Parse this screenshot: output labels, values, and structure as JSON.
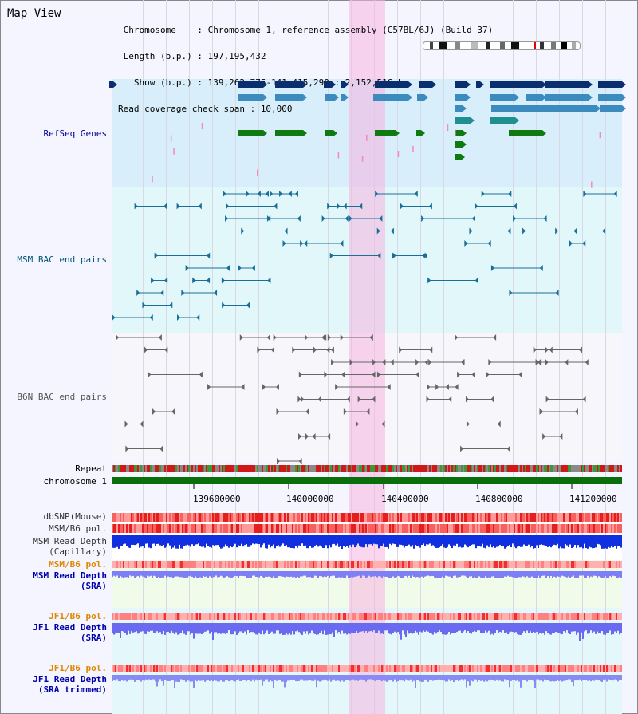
{
  "app": {
    "title": "Map View"
  },
  "header": {
    "chromosome_label": "Chromosome    : ",
    "chromosome_value": "Chromosome 1, reference assembly (C57BL/6J) (Build 37)",
    "length_label": "Length (b.p.) : ",
    "length_value": "197,195,432",
    "show_label": "  Show (b.p.) : ",
    "show_value": "139,262,775-141,415,290 : 2,152,516 bp",
    "span_label": "Read coverage check span : ",
    "span_value": "10,000"
  },
  "tracks": {
    "refseq": "RefSeq Genes",
    "msm_bac": "MSM BAC end pairs",
    "b6n_bac": "B6N BAC end pairs",
    "repeat": "Repeat",
    "chromosome": "chromosome 1",
    "dbsnp": "dbSNP(Mouse)",
    "msm_b6_pol": "MSM/B6 pol.",
    "msm_depth_cap_1": "MSM Read Depth",
    "msm_depth_cap_2": "(Capillary)",
    "msm_b6_pol_2": "MSM/B6 pol.",
    "msm_depth_sra_1": "MSM Read Depth",
    "msm_depth_sra_2": "(SRA)",
    "jf1_b6_pol": "JF1/B6 pol.",
    "jf1_depth_sra_1": "JF1 Read Depth",
    "jf1_depth_sra_2": "(SRA)",
    "jf1_b6_pol_2": "JF1/B6 pol.",
    "jf1_depth_trim_1": "JF1 Read Depth",
    "jf1_depth_trim_2": "(SRA trimmed)"
  },
  "axis": {
    "ticks": [
      "139600000",
      "140000000",
      "140400000",
      "140800000",
      "141200000"
    ]
  },
  "colors": {
    "refseq_label": "#000099",
    "msm_label": "#005577",
    "b6n_label": "#555555",
    "orange_label": "#dd8800",
    "blue_label": "#0000aa",
    "highlight": "#f5b4e1"
  }
}
